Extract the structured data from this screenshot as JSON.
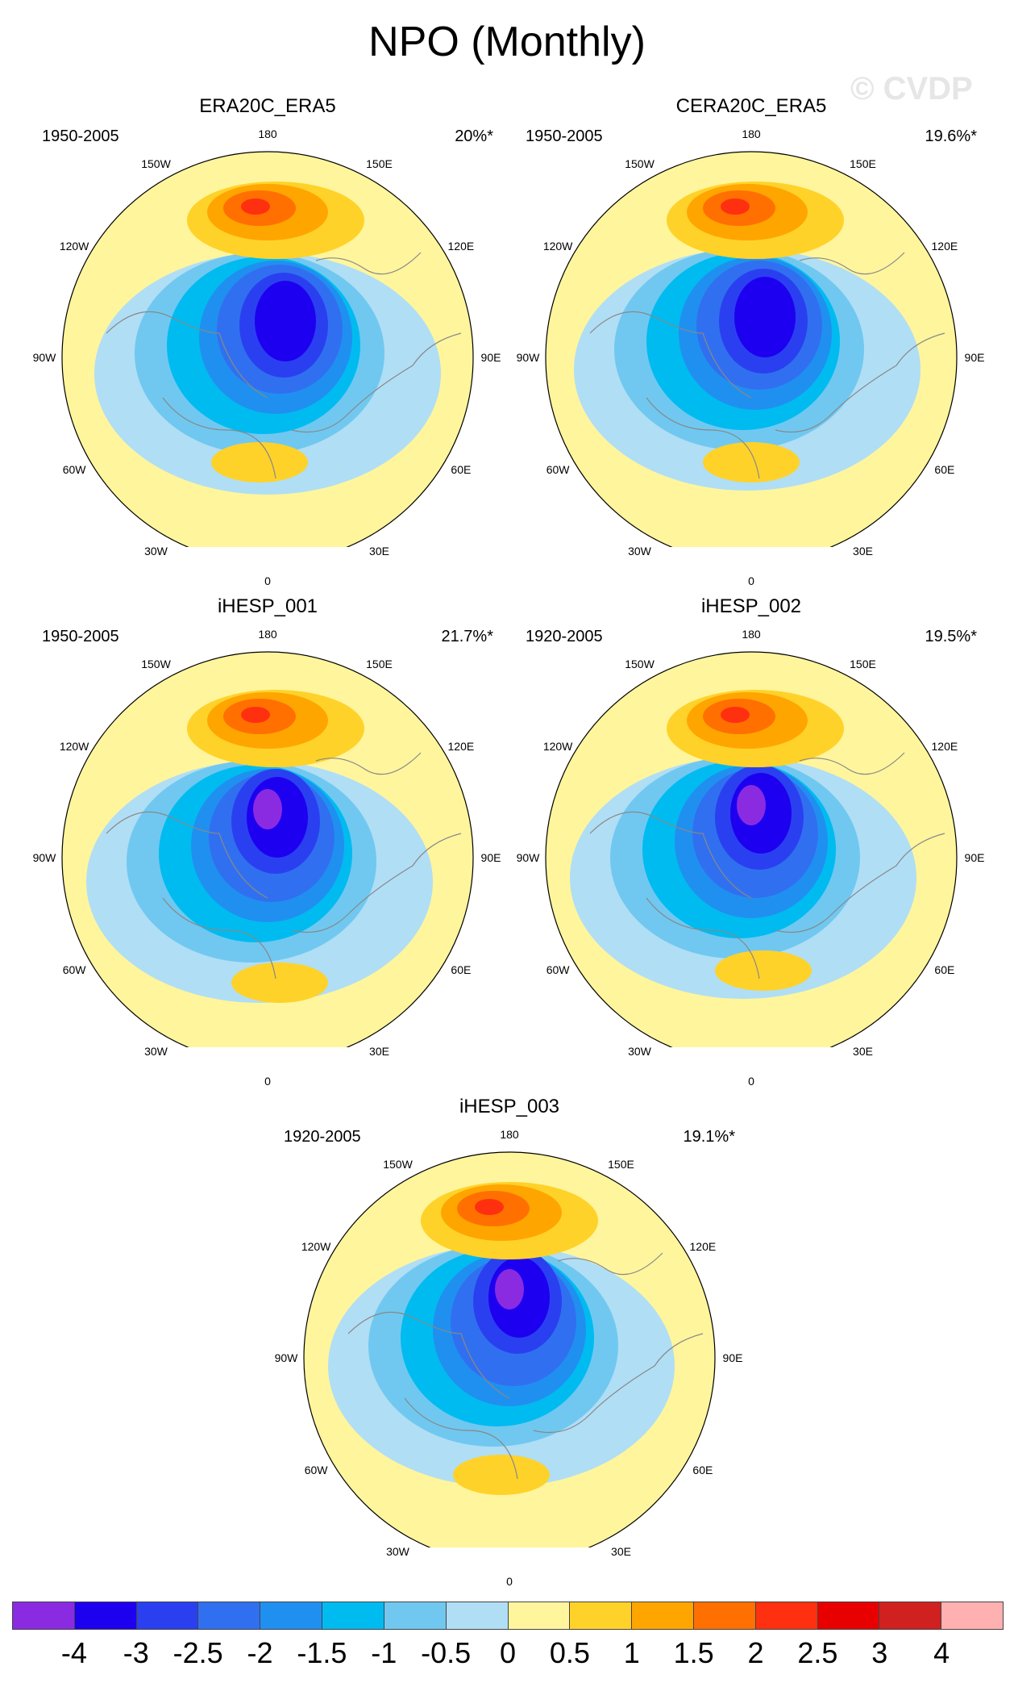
{
  "title": "NPO (Monthly)",
  "watermark": "© CVDP",
  "colors": {
    "ocean_bg": "#FFF59D",
    "coastline": "#888888",
    "levels": [
      "#8A2BE2",
      "#1E00F0",
      "#2A40F0",
      "#3070F0",
      "#2090F0",
      "#00BBF0",
      "#70C8F0",
      "#B0DEF5",
      "#FFF59D",
      "#FFD22A",
      "#FFA500",
      "#FF7000",
      "#FF3010",
      "#E80000",
      "#D02020",
      "#FFB0B0"
    ]
  },
  "panels": [
    {
      "title": "ERA20C_ERA5",
      "years": "1950-2005",
      "percent": "20%*"
    },
    {
      "title": "CERA20C_ERA5",
      "years": "1950-2005",
      "percent": "19.6%*"
    },
    {
      "title": "iHESP_001",
      "years": "1950-2005",
      "percent": "21.7%*"
    },
    {
      "title": "iHESP_002",
      "years": "1920-2005",
      "percent": "19.5%*"
    },
    {
      "title": "iHESP_003",
      "years": "1920-2005",
      "percent": "19.1%*"
    }
  ],
  "longitude_labels": [
    "180",
    "150E",
    "120E",
    "90E",
    "60E",
    "30E",
    "0",
    "30W",
    "60W",
    "90W",
    "120W",
    "150W"
  ],
  "colorbar_labels": [
    "-4",
    "-3",
    "-2.5",
    "-2",
    "-1.5",
    "-1",
    "-0.5",
    "0",
    "0.5",
    "1",
    "1.5",
    "2",
    "2.5",
    "3",
    "4"
  ],
  "chart_data": {
    "type": "polar-stereographic contour maps",
    "title": "NPO (Monthly)",
    "contour_levels": [
      -4,
      -3,
      -2.5,
      -2,
      -1.5,
      -1,
      -0.5,
      0,
      0.5,
      1,
      1.5,
      2,
      2.5,
      3,
      4
    ],
    "panels": [
      {
        "name": "ERA20C_ERA5",
        "period": "1950-2005",
        "variance_explained": "20%*"
      },
      {
        "name": "CERA20C_ERA5",
        "period": "1950-2005",
        "variance_explained": "19.6%*"
      },
      {
        "name": "iHESP_001",
        "period": "1950-2005",
        "variance_explained": "21.7%*"
      },
      {
        "name": "iHESP_002",
        "period": "1920-2005",
        "variance_explained": "19.5%*"
      },
      {
        "name": "iHESP_003",
        "period": "1920-2005",
        "variance_explained": "19.1%*"
      }
    ]
  }
}
